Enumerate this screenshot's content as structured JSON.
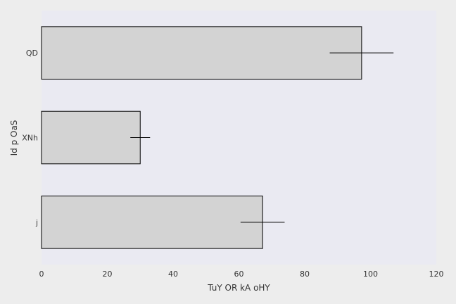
{
  "chart_data": {
    "type": "bar",
    "orientation": "horizontal",
    "categories": [
      "QD",
      "XNh",
      "j"
    ],
    "values": [
      97.3,
      30.0,
      67.2
    ],
    "errors": [
      9.7,
      3.0,
      6.7
    ],
    "xlabel": "TuY  OR kA oHY",
    "ylabel": "Id p OaS",
    "xlim": [
      0,
      120
    ],
    "xticks": [
      0,
      20,
      40,
      60,
      80,
      100,
      120
    ],
    "grid": false,
    "colors": {
      "figure_background": "#ededed",
      "plot_background": "#eaeaf2",
      "bar_fill": "#d3d3d3",
      "bar_edge": "#000000",
      "error_bar": "#000000"
    }
  }
}
